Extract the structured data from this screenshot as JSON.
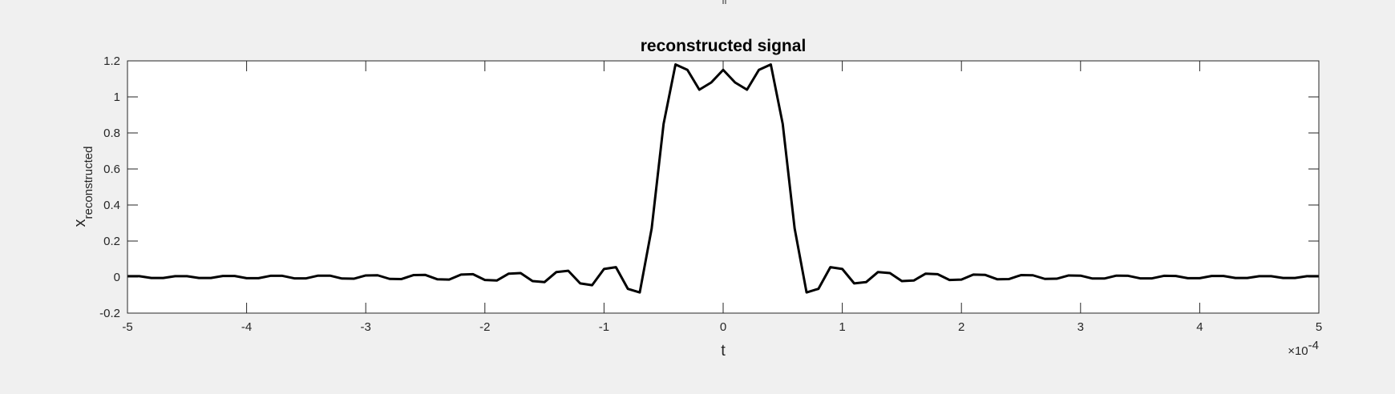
{
  "chart_data": {
    "type": "line",
    "title": "reconstructed signal",
    "xlabel": "t",
    "ylabel": {
      "base": "x",
      "subscript": "reconstructed"
    },
    "x_exponent": {
      "prefix": "×10",
      "power": "-4"
    },
    "xlim": [
      -5,
      5
    ],
    "ylim": [
      -0.2,
      1.2
    ],
    "xticks": [
      "-5",
      "-4",
      "-3",
      "-2",
      "-1",
      "0",
      "1",
      "2",
      "3",
      "4",
      "5"
    ],
    "yticks": [
      "-0.2",
      "0",
      "0.2",
      "0.4",
      "0.6",
      "0.8",
      "1",
      "1.2"
    ],
    "grid": false,
    "colors": {
      "line": "#000000",
      "axes": "#262626",
      "background": "#ffffff",
      "figure": "#f0f0f0"
    },
    "series": [
      {
        "x": [
          -5.0,
          -4.9,
          -4.8,
          -4.7,
          -4.6,
          -4.5,
          -4.4,
          -4.3,
          -4.2,
          -4.1,
          -4.0,
          -3.9,
          -3.8,
          -3.7,
          -3.6,
          -3.5,
          -3.4,
          -3.3,
          -3.2,
          -3.1,
          -3.0,
          -2.9,
          -2.8,
          -2.7,
          -2.6,
          -2.5,
          -2.4,
          -2.3,
          -2.2,
          -2.1,
          -2.0,
          -1.9,
          -1.8,
          -1.7,
          -1.6,
          -1.5,
          -1.4,
          -1.3,
          -1.2,
          -1.1,
          -1.0,
          -0.9,
          -0.8,
          -0.7,
          -0.6,
          -0.5,
          -0.4,
          -0.3,
          -0.2,
          -0.1,
          0.0,
          0.1,
          0.2,
          0.3,
          0.4,
          0.5,
          0.6,
          0.7,
          0.8,
          0.9,
          1.0,
          1.1,
          1.2,
          1.3,
          1.4,
          1.5,
          1.6,
          1.7,
          1.8,
          1.9,
          2.0,
          2.1,
          2.2,
          2.3,
          2.4,
          2.5,
          2.6,
          2.7,
          2.8,
          2.9,
          3.0,
          3.1,
          3.2,
          3.3,
          3.4,
          3.5,
          3.6,
          3.7,
          3.8,
          3.9,
          4.0,
          4.1,
          4.2,
          4.3,
          4.4,
          4.5,
          4.6,
          4.7,
          4.8,
          4.9,
          5.0
        ],
        "y": [
          0.005,
          0.005,
          -0.005,
          -0.005,
          0.005,
          0.005,
          -0.005,
          -0.005,
          0.006,
          0.006,
          -0.006,
          -0.006,
          0.007,
          0.007,
          -0.007,
          -0.007,
          0.008,
          0.008,
          -0.008,
          -0.009,
          0.009,
          0.01,
          -0.01,
          -0.011,
          0.011,
          0.012,
          -0.012,
          -0.014,
          0.014,
          0.016,
          -0.016,
          -0.019,
          0.019,
          0.022,
          -0.022,
          -0.028,
          0.028,
          0.035,
          -0.035,
          -0.045,
          0.045,
          0.055,
          -0.065,
          -0.085,
          0.27,
          0.85,
          1.18,
          1.15,
          1.04,
          1.08,
          1.15,
          1.08,
          1.04,
          1.15,
          1.18,
          0.85,
          0.27,
          -0.085,
          -0.065,
          0.055,
          0.045,
          -0.035,
          -0.028,
          0.028,
          0.022,
          -0.022,
          -0.019,
          0.019,
          0.016,
          -0.016,
          -0.014,
          0.014,
          0.012,
          -0.012,
          -0.011,
          0.011,
          0.01,
          -0.01,
          -0.009,
          0.009,
          0.008,
          -0.008,
          -0.008,
          0.008,
          0.007,
          -0.007,
          -0.007,
          0.007,
          0.006,
          -0.006,
          -0.006,
          0.006,
          0.006,
          -0.005,
          -0.005,
          0.005,
          0.005,
          -0.005,
          -0.005,
          0.005,
          0.005
        ]
      }
    ]
  }
}
